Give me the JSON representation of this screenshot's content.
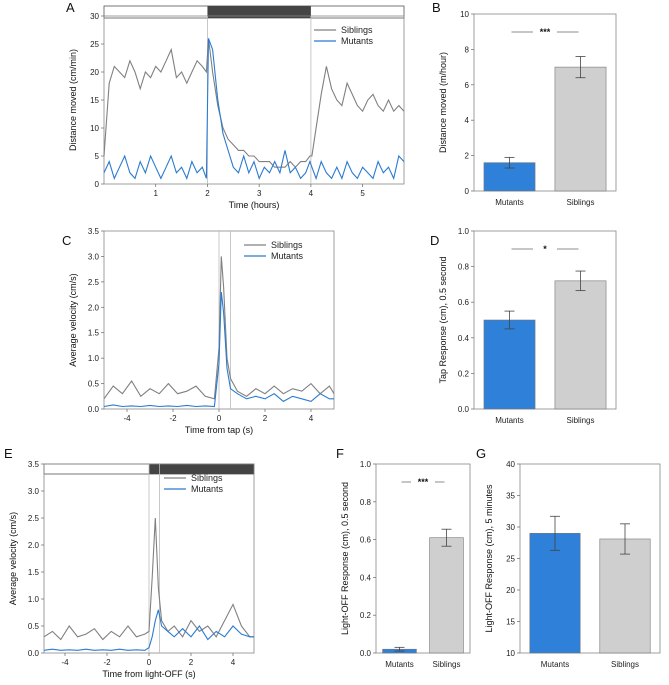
{
  "colors": {
    "mutants": "#2b7bd0",
    "siblings": "#808080",
    "bar_mutants": "#2f80d8",
    "bar_siblings": "#cfcfcf",
    "dark": "#444444"
  },
  "chart_data": [
    {
      "panel": "A",
      "type": "line",
      "xlabel": "Time (hours)",
      "ylabel": "Distance moved (cm/min)",
      "xlim": [
        0,
        5.8
      ],
      "ylim": [
        0,
        30
      ],
      "xticks": [
        1,
        2,
        3,
        4,
        5
      ],
      "yticks": [
        0,
        5,
        10,
        15,
        20,
        25,
        30
      ],
      "dark_period": [
        2,
        4
      ],
      "vlines": [
        2,
        4
      ],
      "legend_position": "top-right",
      "series": [
        {
          "name": "Siblings",
          "x": [
            0,
            0.1,
            0.2,
            0.3,
            0.4,
            0.5,
            0.6,
            0.7,
            0.8,
            0.9,
            1.0,
            1.1,
            1.2,
            1.3,
            1.4,
            1.5,
            1.6,
            1.7,
            1.8,
            1.9,
            1.98,
            2.02,
            2.1,
            2.2,
            2.3,
            2.4,
            2.5,
            2.6,
            2.7,
            2.8,
            2.9,
            3.0,
            3.1,
            3.2,
            3.3,
            3.4,
            3.5,
            3.6,
            3.7,
            3.8,
            3.9,
            3.98,
            4.02,
            4.1,
            4.2,
            4.3,
            4.4,
            4.5,
            4.6,
            4.7,
            4.8,
            4.9,
            5.0,
            5.1,
            5.2,
            5.3,
            5.4,
            5.5,
            5.6,
            5.7,
            5.8
          ],
          "values": [
            5,
            18,
            21,
            20,
            19,
            22,
            20,
            17,
            20,
            19,
            21,
            20,
            22,
            24,
            19,
            20,
            18,
            20,
            22,
            21,
            20,
            26,
            20,
            14,
            10,
            8,
            7,
            6,
            6,
            5,
            5,
            4,
            4,
            4,
            3,
            3,
            3,
            4,
            3,
            4,
            4,
            5,
            5,
            10,
            16,
            21,
            17,
            15,
            14,
            18,
            16,
            14,
            13,
            15,
            16,
            14,
            13,
            15,
            13,
            14,
            13
          ]
        },
        {
          "name": "Mutants",
          "x": [
            0,
            0.1,
            0.2,
            0.3,
            0.4,
            0.5,
            0.6,
            0.7,
            0.8,
            0.9,
            1.0,
            1.1,
            1.2,
            1.3,
            1.4,
            1.5,
            1.6,
            1.7,
            1.8,
            1.9,
            1.98,
            2.02,
            2.1,
            2.2,
            2.3,
            2.4,
            2.5,
            2.6,
            2.7,
            2.8,
            2.9,
            3.0,
            3.1,
            3.2,
            3.3,
            3.4,
            3.5,
            3.6,
            3.7,
            3.8,
            3.9,
            3.98,
            4.02,
            4.1,
            4.2,
            4.3,
            4.4,
            4.5,
            4.6,
            4.7,
            4.8,
            4.9,
            5.0,
            5.1,
            5.2,
            5.3,
            5.4,
            5.5,
            5.6,
            5.7,
            5.8
          ],
          "values": [
            2,
            4,
            1,
            3,
            5,
            2,
            1,
            4,
            2,
            5,
            3,
            1,
            3,
            5,
            2,
            3,
            1,
            4,
            2,
            3,
            1,
            26,
            24,
            15,
            9,
            6,
            3,
            2,
            5,
            2,
            4,
            1,
            3,
            2,
            4,
            2,
            6,
            2,
            3,
            1,
            2,
            4,
            3,
            1,
            4,
            2,
            1,
            3,
            1,
            4,
            2,
            1,
            3,
            2,
            1,
            4,
            2,
            3,
            1,
            5,
            4
          ]
        }
      ]
    },
    {
      "panel": "B",
      "type": "bar",
      "categories": [
        "Mutants",
        "Siblings"
      ],
      "values": [
        1.6,
        7.0
      ],
      "errors": [
        0.3,
        0.6
      ],
      "ylabel": "Distance moved (m/hour)",
      "ylim": [
        0,
        10
      ],
      "yticks": [
        0,
        2,
        4,
        6,
        8,
        10
      ],
      "significance": "***"
    },
    {
      "panel": "C",
      "type": "line",
      "xlabel": "Time from tap (s)",
      "ylabel": "Average velocity (cm/s)",
      "xlim": [
        -5,
        5
      ],
      "ylim": [
        0,
        3.5
      ],
      "xticks": [
        -4,
        -2,
        0,
        2,
        4
      ],
      "yticks": [
        0,
        0.5,
        1.0,
        1.5,
        2.0,
        2.5,
        3.0,
        3.5
      ],
      "vlines": [
        0,
        0.5
      ],
      "legend_position": "top-right",
      "series": [
        {
          "name": "Siblings",
          "x": [
            -5,
            -4.6,
            -4.2,
            -3.8,
            -3.4,
            -3.0,
            -2.6,
            -2.2,
            -1.8,
            -1.4,
            -1.0,
            -0.6,
            -0.2,
            0.0,
            0.1,
            0.2,
            0.35,
            0.5,
            0.8,
            1.2,
            1.6,
            2.0,
            2.4,
            2.8,
            3.2,
            3.6,
            4.0,
            4.4,
            4.8,
            5.0
          ],
          "values": [
            0.2,
            0.45,
            0.3,
            0.55,
            0.25,
            0.4,
            0.3,
            0.5,
            0.3,
            0.35,
            0.45,
            0.25,
            0.2,
            1.2,
            3.0,
            2.4,
            1.0,
            0.6,
            0.35,
            0.25,
            0.4,
            0.3,
            0.45,
            0.3,
            0.4,
            0.35,
            0.5,
            0.3,
            0.45,
            0.3
          ]
        },
        {
          "name": "Mutants",
          "x": [
            -5,
            -4.6,
            -4.2,
            -3.8,
            -3.4,
            -3.0,
            -2.6,
            -2.2,
            -1.8,
            -1.4,
            -1.0,
            -0.6,
            -0.2,
            0.0,
            0.1,
            0.2,
            0.35,
            0.5,
            0.8,
            1.2,
            1.6,
            2.0,
            2.4,
            2.8,
            3.2,
            3.6,
            4.0,
            4.4,
            4.8,
            5.0
          ],
          "values": [
            0.05,
            0.08,
            0.05,
            0.06,
            0.05,
            0.07,
            0.05,
            0.06,
            0.05,
            0.07,
            0.05,
            0.06,
            0.05,
            0.9,
            2.3,
            1.9,
            0.8,
            0.4,
            0.3,
            0.2,
            0.25,
            0.2,
            0.3,
            0.15,
            0.25,
            0.2,
            0.15,
            0.3,
            0.2,
            0.2
          ]
        }
      ]
    },
    {
      "panel": "D",
      "type": "bar",
      "categories": [
        "Mutants",
        "Siblings"
      ],
      "values": [
        0.5,
        0.72
      ],
      "errors": [
        0.05,
        0.055
      ],
      "ylabel": "Tap Response (cm), 0.5 second",
      "ylim": [
        0,
        1.0
      ],
      "yticks": [
        0,
        0.2,
        0.4,
        0.6,
        0.8,
        1.0
      ],
      "significance": "*"
    },
    {
      "panel": "E",
      "type": "line",
      "xlabel": "Time from light-OFF (s)",
      "ylabel": "Average velocity (cm/s)",
      "xlim": [
        -5,
        5
      ],
      "ylim": [
        0,
        3.5
      ],
      "xticks": [
        -4,
        -2,
        0,
        2,
        4
      ],
      "yticks": [
        0,
        0.5,
        1.0,
        1.5,
        2.0,
        2.5,
        3.0,
        3.5
      ],
      "dark_period": [
        0,
        5
      ],
      "vlines": [
        0,
        0.5
      ],
      "legend_position": "top-right",
      "series": [
        {
          "name": "Siblings",
          "x": [
            -5,
            -4.6,
            -4.2,
            -3.8,
            -3.4,
            -3.0,
            -2.6,
            -2.2,
            -1.8,
            -1.4,
            -1.0,
            -0.6,
            -0.2,
            0.0,
            0.15,
            0.3,
            0.45,
            0.6,
            0.9,
            1.2,
            1.6,
            2.0,
            2.4,
            2.8,
            3.2,
            3.6,
            4.0,
            4.4,
            4.8,
            5.0
          ],
          "values": [
            0.3,
            0.4,
            0.25,
            0.5,
            0.3,
            0.35,
            0.45,
            0.25,
            0.4,
            0.3,
            0.5,
            0.3,
            0.35,
            0.4,
            1.4,
            2.5,
            1.2,
            0.6,
            0.4,
            0.5,
            0.3,
            0.6,
            0.4,
            0.5,
            0.3,
            0.6,
            0.9,
            0.5,
            0.3,
            0.3
          ]
        },
        {
          "name": "Mutants",
          "x": [
            -5,
            -4.6,
            -4.2,
            -3.8,
            -3.4,
            -3.0,
            -2.6,
            -2.2,
            -1.8,
            -1.4,
            -1.0,
            -0.6,
            -0.2,
            0.0,
            0.15,
            0.3,
            0.45,
            0.6,
            0.9,
            1.2,
            1.6,
            2.0,
            2.4,
            2.8,
            3.2,
            3.6,
            4.0,
            4.4,
            4.8,
            5.0
          ],
          "values": [
            0.05,
            0.07,
            0.05,
            0.06,
            0.05,
            0.07,
            0.05,
            0.06,
            0.05,
            0.07,
            0.05,
            0.06,
            0.05,
            0.1,
            0.3,
            0.6,
            0.8,
            0.5,
            0.4,
            0.3,
            0.45,
            0.3,
            0.5,
            0.25,
            0.4,
            0.3,
            0.5,
            0.35,
            0.3,
            0.3
          ]
        }
      ]
    },
    {
      "panel": "F",
      "type": "bar",
      "categories": [
        "Mutants",
        "Siblings"
      ],
      "values": [
        0.02,
        0.61
      ],
      "errors": [
        0.01,
        0.045
      ],
      "ylabel": "Light-OFF Response (cm), 0.5 second",
      "ylim": [
        0,
        1.0
      ],
      "yticks": [
        0,
        0.2,
        0.4,
        0.6,
        0.8,
        1.0
      ],
      "significance": "***"
    },
    {
      "panel": "G",
      "type": "bar",
      "categories": [
        "Mutants",
        "Siblings"
      ],
      "values": [
        29.0,
        28.1
      ],
      "errors": [
        2.7,
        2.4
      ],
      "ylabel": "Light-OFF Response (cm), 5 minutes",
      "ylim": [
        10,
        40
      ],
      "yticks": [
        10,
        15,
        20,
        25,
        30,
        35,
        40
      ]
    }
  ]
}
